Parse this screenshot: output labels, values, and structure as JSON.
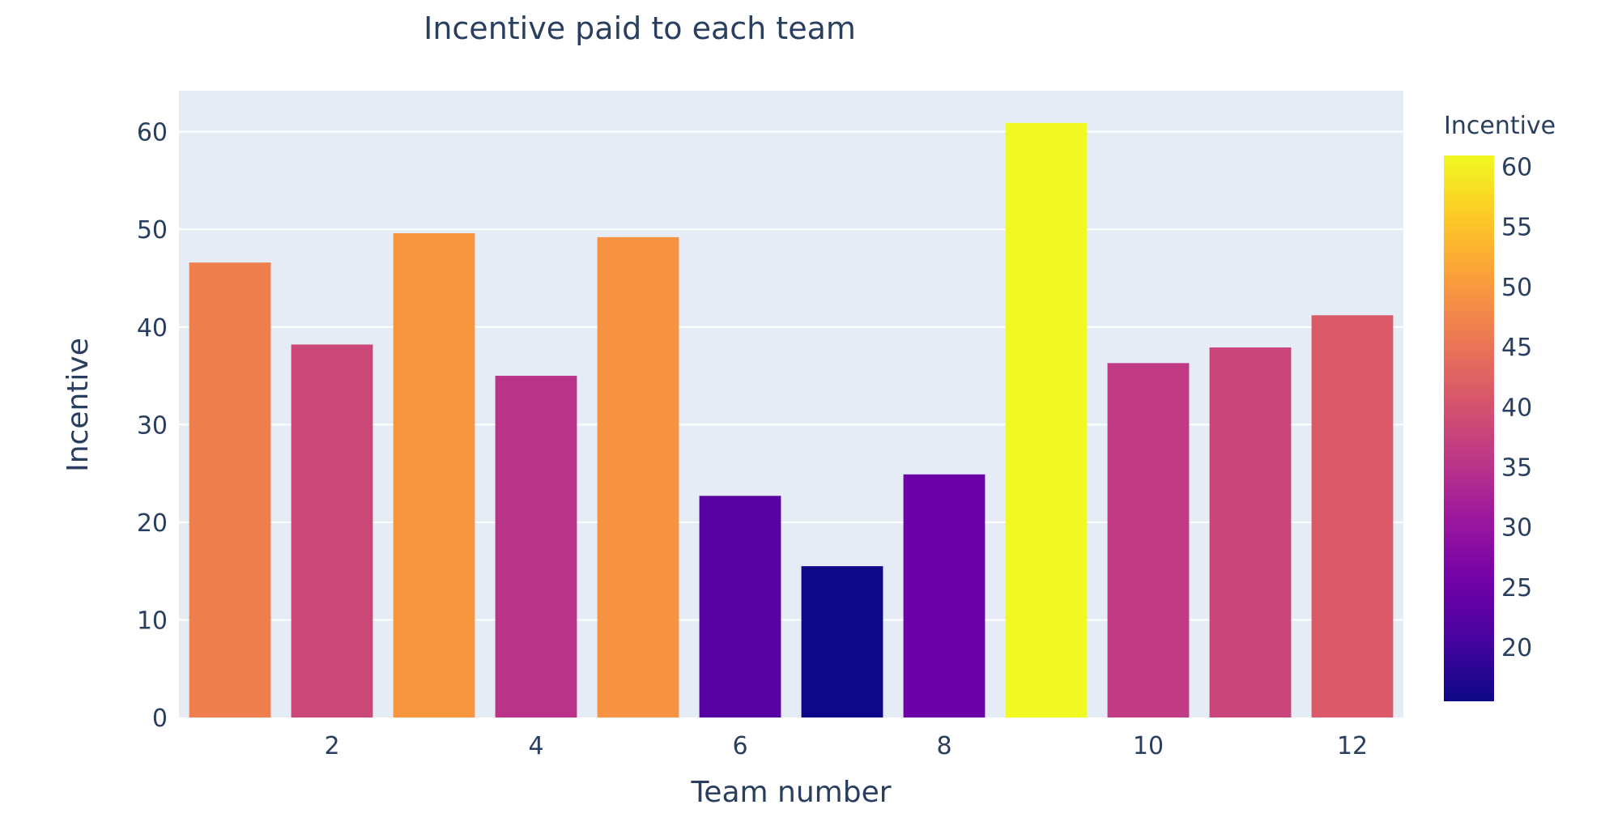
{
  "chart_data": {
    "type": "bar",
    "title": "Incentive paid to each team",
    "xlabel": "Team number",
    "ylabel": "Incentive",
    "x": [
      1,
      2,
      3,
      4,
      5,
      6,
      7,
      8,
      9,
      10,
      11,
      12
    ],
    "values": [
      46.6,
      38.2,
      49.6,
      35.0,
      49.2,
      22.7,
      15.5,
      24.9,
      60.9,
      36.3,
      37.9,
      41.2
    ],
    "ylim": [
      0,
      64.2
    ],
    "xlim": [
      0.5,
      12.5
    ],
    "x_ticks": [
      2,
      4,
      6,
      8,
      10,
      12
    ],
    "y_ticks": [
      0,
      10,
      20,
      30,
      40,
      50,
      60
    ],
    "grid": true,
    "colorbar": {
      "title": "Incentive",
      "range": [
        15.5,
        60.9
      ],
      "ticks": [
        20,
        25,
        30,
        35,
        40,
        45,
        50,
        55,
        60
      ],
      "colorscale": "Plasma"
    },
    "colors": {
      "plot_bg": "#e5ecf6",
      "grid": "#ffffff",
      "text": "#2a3f5f"
    }
  }
}
